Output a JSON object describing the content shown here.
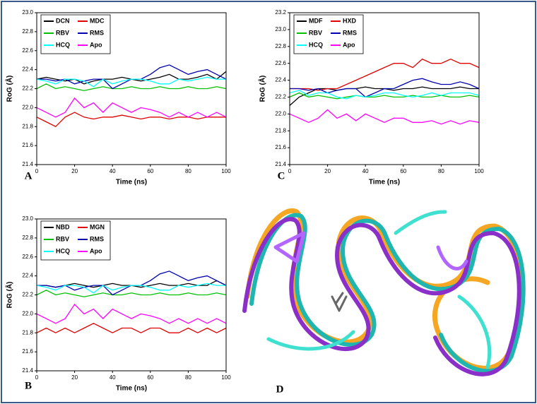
{
  "chart_data": [
    {
      "type": "line",
      "panel_label": "A",
      "x_label": "Time (ns)",
      "y_label": "RoG (Å)",
      "x": [
        0,
        5,
        10,
        15,
        20,
        25,
        30,
        35,
        40,
        45,
        50,
        55,
        60,
        65,
        70,
        75,
        80,
        85,
        90,
        95,
        100
      ],
      "xlim": [
        0,
        100
      ],
      "xticks": [
        0,
        20,
        40,
        60,
        80,
        100
      ],
      "ylim": [
        21.4,
        23.0
      ],
      "yticks": [
        21.4,
        21.6,
        21.8,
        {
          "value": 22.0,
          "label": "22.0"
        },
        22.2,
        22.4,
        22.6,
        22.8,
        {
          "value": 23.0,
          "label": "23.0"
        }
      ],
      "series": [
        {
          "name": "DCN",
          "color": "#000000",
          "values": [
            22.3,
            22.32,
            22.3,
            22.28,
            22.3,
            22.25,
            22.28,
            22.3,
            22.3,
            22.32,
            22.3,
            22.28,
            22.3,
            22.32,
            22.35,
            22.3,
            22.3,
            22.32,
            22.35,
            22.3,
            22.38
          ]
        },
        {
          "name": "MDC",
          "color": "#e00000",
          "values": [
            21.9,
            21.85,
            21.8,
            21.9,
            21.95,
            21.9,
            21.88,
            21.9,
            21.9,
            21.92,
            21.9,
            21.88,
            21.9,
            21.9,
            21.88,
            21.9,
            21.9,
            21.88,
            21.9,
            21.9,
            21.9
          ]
        },
        {
          "name": "RBV",
          "color": "#00c000",
          "values": [
            22.2,
            22.25,
            22.2,
            22.22,
            22.2,
            22.18,
            22.2,
            22.22,
            22.2,
            22.2,
            22.22,
            22.2,
            22.2,
            22.22,
            22.2,
            22.2,
            22.22,
            22.2,
            22.2,
            22.22,
            22.2
          ]
        },
        {
          "name": "RMS",
          "color": "#0000b0",
          "values": [
            22.3,
            22.3,
            22.28,
            22.3,
            22.25,
            22.28,
            22.3,
            22.3,
            22.2,
            22.25,
            22.3,
            22.3,
            22.35,
            22.42,
            22.45,
            22.4,
            22.35,
            22.38,
            22.4,
            22.35,
            22.3
          ]
        },
        {
          "name": "HCQ",
          "color": "#00ffff",
          "values": [
            22.3,
            22.28,
            22.25,
            22.3,
            22.3,
            22.28,
            22.22,
            22.3,
            22.25,
            22.28,
            22.3,
            22.3,
            22.28,
            22.25,
            22.25,
            22.3,
            22.28,
            22.3,
            22.32,
            22.3,
            22.3
          ]
        },
        {
          "name": "Apo",
          "color": "#ff00ff",
          "values": [
            22.0,
            21.95,
            21.9,
            21.95,
            22.1,
            22.0,
            22.05,
            21.95,
            22.05,
            22.0,
            21.95,
            22.0,
            21.98,
            21.95,
            21.9,
            21.95,
            21.9,
            21.95,
            21.9,
            21.95,
            21.9
          ]
        }
      ]
    },
    {
      "type": "line",
      "panel_label": "B",
      "x_label": "Time (ns)",
      "y_label": "RoG (Å)",
      "x": [
        0,
        5,
        10,
        15,
        20,
        25,
        30,
        35,
        40,
        45,
        50,
        55,
        60,
        65,
        70,
        75,
        80,
        85,
        90,
        95,
        100
      ],
      "xlim": [
        0,
        100
      ],
      "xticks": [
        0,
        20,
        40,
        60,
        80,
        100
      ],
      "ylim": [
        21.4,
        23.0
      ],
      "yticks": [
        21.4,
        21.6,
        21.8,
        {
          "value": 22.0,
          "label": "22.0"
        },
        22.2,
        22.4,
        22.6,
        22.8,
        {
          "value": 23.0,
          "label": "23.0"
        }
      ],
      "series": [
        {
          "name": "NBD",
          "color": "#000000",
          "values": [
            22.3,
            22.3,
            22.28,
            22.3,
            22.32,
            22.3,
            22.28,
            22.3,
            22.32,
            22.3,
            22.3,
            22.28,
            22.3,
            22.32,
            22.3,
            22.3,
            22.32,
            22.3,
            22.3,
            22.35,
            22.3
          ]
        },
        {
          "name": "MGN",
          "color": "#e00000",
          "values": [
            21.8,
            21.85,
            21.8,
            21.85,
            21.8,
            21.85,
            21.9,
            21.85,
            21.8,
            21.85,
            21.85,
            21.8,
            21.85,
            21.85,
            21.8,
            21.8,
            21.85,
            21.8,
            21.85,
            21.8,
            21.85
          ]
        },
        {
          "name": "RBV",
          "color": "#00c000",
          "values": [
            22.2,
            22.25,
            22.2,
            22.22,
            22.2,
            22.18,
            22.2,
            22.22,
            22.2,
            22.2,
            22.22,
            22.2,
            22.2,
            22.22,
            22.2,
            22.2,
            22.22,
            22.2,
            22.2,
            22.22,
            22.2
          ]
        },
        {
          "name": "RMS",
          "color": "#0000b0",
          "values": [
            22.3,
            22.3,
            22.28,
            22.3,
            22.25,
            22.28,
            22.3,
            22.3,
            22.2,
            22.25,
            22.3,
            22.3,
            22.35,
            22.42,
            22.45,
            22.4,
            22.35,
            22.38,
            22.4,
            22.35,
            22.3
          ]
        },
        {
          "name": "HCQ",
          "color": "#00ffff",
          "values": [
            22.3,
            22.28,
            22.25,
            22.3,
            22.3,
            22.28,
            22.22,
            22.3,
            22.25,
            22.28,
            22.3,
            22.3,
            22.28,
            22.25,
            22.25,
            22.3,
            22.28,
            22.3,
            22.32,
            22.3,
            22.3
          ]
        },
        {
          "name": "Apo",
          "color": "#ff00ff",
          "values": [
            22.0,
            21.95,
            21.9,
            21.95,
            22.1,
            22.0,
            22.05,
            21.95,
            22.05,
            22.0,
            21.95,
            22.0,
            21.98,
            21.95,
            21.9,
            21.95,
            21.9,
            21.95,
            21.9,
            21.95,
            21.9
          ]
        }
      ]
    },
    {
      "type": "line",
      "panel_label": "C",
      "x_label": "Time (ns)",
      "y_label": "RoG (Å)",
      "x": [
        0,
        5,
        10,
        15,
        20,
        25,
        30,
        35,
        40,
        45,
        50,
        55,
        60,
        65,
        70,
        75,
        80,
        85,
        90,
        95,
        100
      ],
      "xlim": [
        0,
        100
      ],
      "xticks": [
        0,
        20,
        40,
        60,
        80,
        100
      ],
      "ylim": [
        21.4,
        23.2
      ],
      "yticks": [
        21.4,
        21.6,
        21.8,
        {
          "value": 22.0,
          "label": "22.0"
        },
        22.2,
        22.4,
        22.6,
        22.8,
        {
          "value": 23.0,
          "label": "23.0"
        },
        23.2
      ],
      "series": [
        {
          "name": "MDF",
          "color": "#000000",
          "values": [
            22.1,
            22.2,
            22.25,
            22.3,
            22.3,
            22.28,
            22.3,
            22.3,
            22.32,
            22.3,
            22.3,
            22.28,
            22.3,
            22.3,
            22.32,
            22.3,
            22.3,
            22.3,
            22.32,
            22.3,
            22.3
          ]
        },
        {
          "name": "HXD",
          "color": "#e00000",
          "values": [
            22.3,
            22.3,
            22.3,
            22.28,
            22.3,
            22.3,
            22.35,
            22.4,
            22.45,
            22.5,
            22.55,
            22.6,
            22.6,
            22.55,
            22.65,
            22.6,
            22.6,
            22.65,
            22.6,
            22.6,
            22.55
          ]
        },
        {
          "name": "RBV",
          "color": "#00c000",
          "values": [
            22.2,
            22.25,
            22.2,
            22.22,
            22.2,
            22.18,
            22.2,
            22.22,
            22.2,
            22.2,
            22.22,
            22.2,
            22.2,
            22.22,
            22.2,
            22.2,
            22.22,
            22.2,
            22.2,
            22.22,
            22.2
          ]
        },
        {
          "name": "RMS",
          "color": "#0000b0",
          "values": [
            22.3,
            22.3,
            22.28,
            22.3,
            22.25,
            22.28,
            22.3,
            22.3,
            22.2,
            22.25,
            22.3,
            22.3,
            22.35,
            22.4,
            22.42,
            22.38,
            22.35,
            22.35,
            22.38,
            22.35,
            22.3
          ]
        },
        {
          "name": "HCQ",
          "color": "#00ffff",
          "values": [
            22.25,
            22.28,
            22.22,
            22.25,
            22.25,
            22.2,
            22.18,
            22.22,
            22.2,
            22.22,
            22.25,
            22.25,
            22.22,
            22.2,
            22.22,
            22.25,
            22.22,
            22.25,
            22.25,
            22.25,
            22.22
          ]
        },
        {
          "name": "Apo",
          "color": "#ff00ff",
          "values": [
            22.0,
            21.95,
            21.9,
            21.95,
            22.05,
            21.95,
            22.0,
            21.92,
            22.0,
            21.95,
            21.9,
            21.95,
            21.95,
            21.9,
            21.9,
            21.92,
            21.88,
            21.92,
            21.88,
            21.92,
            21.9
          ]
        }
      ]
    }
  ],
  "image_panel": {
    "label": "D"
  }
}
